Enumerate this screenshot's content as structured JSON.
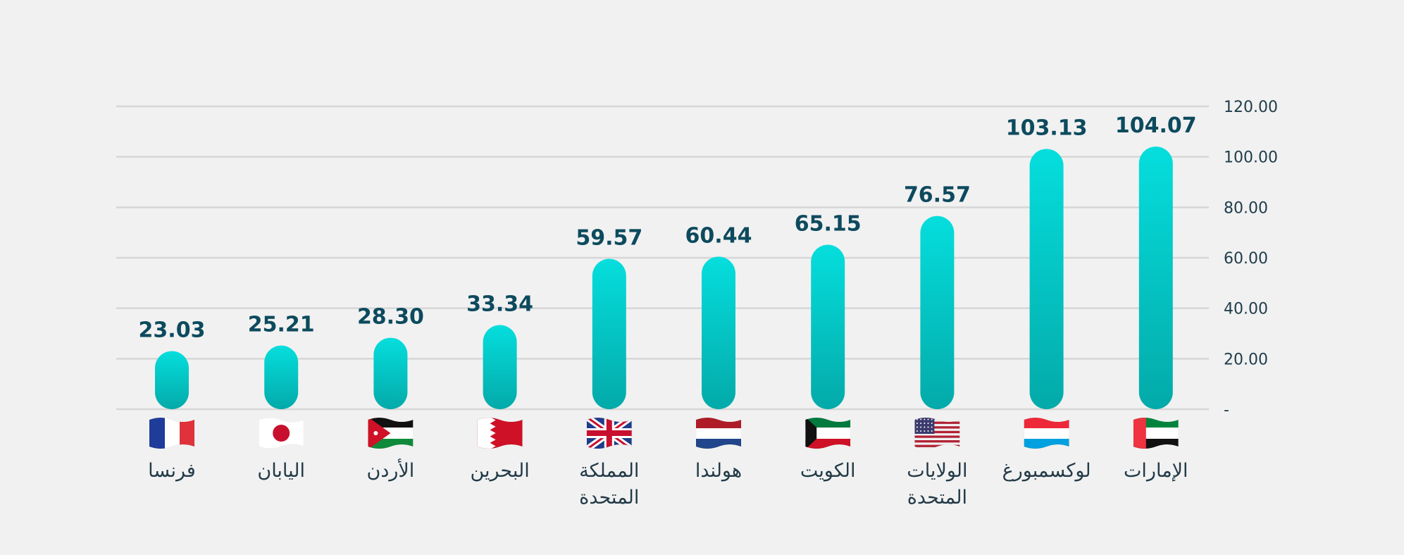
{
  "chart_data": {
    "type": "bar",
    "categories": [
      "فرنسا",
      "اليابان",
      "الأردن",
      "البحرين",
      "المملكة المتحدة",
      "هولندا",
      "الكويت",
      "الولايات المتحدة",
      "لوكسمبورغ",
      "الإمارات"
    ],
    "category_lines": [
      [
        "فرنسا"
      ],
      [
        "اليابان"
      ],
      [
        "الأردن"
      ],
      [
        "البحرين"
      ],
      [
        "المملكة",
        "المتحدة"
      ],
      [
        "هولندا"
      ],
      [
        "الكويت"
      ],
      [
        "الولايات",
        "المتحدة"
      ],
      [
        "لوكسمبورغ"
      ],
      [
        "الإمارات"
      ]
    ],
    "values": [
      23.03,
      25.21,
      28.3,
      33.34,
      59.57,
      60.44,
      65.15,
      76.57,
      103.13,
      104.07
    ],
    "value_labels": [
      "23.03",
      "25.21",
      "28.30",
      "33.34",
      "59.57",
      "60.44",
      "65.15",
      "76.57",
      "103.13",
      "104.07"
    ],
    "flags": [
      "france-flag",
      "japan-flag",
      "jordan-flag",
      "bahrain-flag",
      "uk-flag",
      "netherlands-flag",
      "kuwait-flag",
      "usa-flag",
      "luxembourg-flag",
      "uae-flag"
    ],
    "y_ticks": [
      0,
      20,
      40,
      60,
      80,
      100,
      120
    ],
    "y_tick_labels": [
      "-",
      "20.00",
      "40.00",
      "60.00",
      "80.00",
      "100.00",
      "120.00"
    ],
    "ylim": [
      0,
      120
    ],
    "y_axis_side": "right",
    "grid": true,
    "colors": {
      "bar_top": "#05dedd",
      "bar_bottom": "#03aaa9",
      "value_text": "#0d4a5e",
      "grid": "#d7d7d7",
      "background": "#f1f1f1"
    }
  }
}
